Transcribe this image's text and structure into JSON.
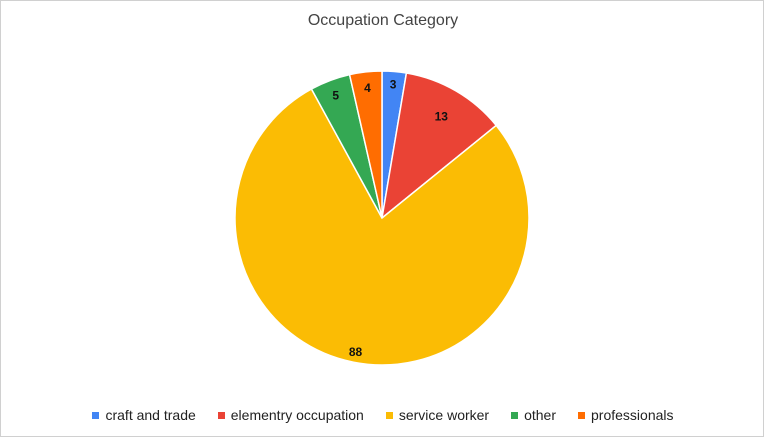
{
  "chart_data": {
    "type": "pie",
    "title": "Occupation Category",
    "categories": [
      "craft and trade",
      "elementry occupation",
      "service worker",
      "other",
      "professionals"
    ],
    "values": [
      3,
      13,
      88,
      5,
      4
    ],
    "colors": [
      "#4285f4",
      "#ea4335",
      "#fbbc04",
      "#34a853",
      "#ff6d01"
    ],
    "legend_position": "bottom"
  }
}
